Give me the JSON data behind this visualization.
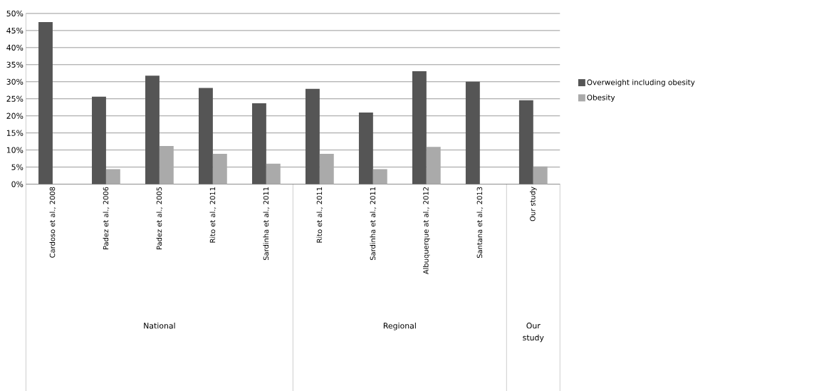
{
  "chart_data": {
    "type": "bar",
    "categories": [
      "Cardoso et al., 2008",
      "Padez et al., 2006",
      "Padez et al., 2005",
      "Rito et al., 2011",
      "Sardinha et al., 2011",
      "Rito et al., 2011",
      "Sardinha et al., 2011",
      "Albuquerque at al., 2012",
      "Santana et al., 2013",
      "Our study"
    ],
    "series": [
      {
        "name": "Overweight including obesity",
        "color": "#555555",
        "values": [
          47.5,
          25.6,
          31.8,
          28.2,
          23.7,
          27.9,
          21.0,
          33.1,
          30.0,
          24.6
        ]
      },
      {
        "name": "Obesity",
        "color": "#aaaaaa",
        "values": [
          null,
          4.4,
          11.2,
          8.9,
          6.0,
          8.9,
          4.4,
          10.9,
          null,
          5.2
        ]
      }
    ],
    "ylim": [
      0,
      50
    ],
    "yticks": [
      {
        "value": 0,
        "label": "0%"
      },
      {
        "value": 5,
        "label": "5%"
      },
      {
        "value": 10,
        "label": "10%"
      },
      {
        "value": 15,
        "label": "15%"
      },
      {
        "value": 20,
        "label": "20%"
      },
      {
        "value": 25,
        "label": "25%"
      },
      {
        "value": 30,
        "label": "30%"
      },
      {
        "value": 35,
        "label": "35%"
      },
      {
        "value": 40,
        "label": "40%"
      },
      {
        "value": 45,
        "label": "45%"
      },
      {
        "value": 50,
        "label": "50%"
      }
    ],
    "grid": "y",
    "legend": "right",
    "annotations": [
      "National",
      "Regional",
      "Our study"
    ]
  }
}
